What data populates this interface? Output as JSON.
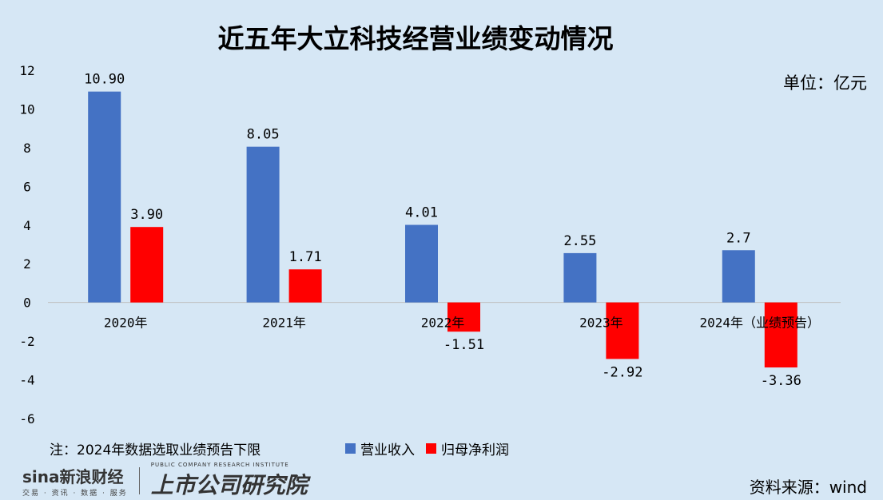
{
  "title": "近五年大立科技经营业绩变动情况",
  "unit_label": "单位：亿元",
  "note": "注：2024年数据选取业绩预告下限",
  "source": "资料来源：wind",
  "watermark": {
    "brand": "sina新浪财经",
    "sub": "交易 · 资讯 · 数据 · 服务",
    "lab": "上市公司研究院",
    "lab_sub": "PUBLIC COMPANY RESEARCH INSTITUTE"
  },
  "colors": {
    "revenue": "#4472c4",
    "profit": "#ff0000",
    "background": "#d6e7f5"
  },
  "chart_data": {
    "type": "bar",
    "categories": [
      "2020年",
      "2021年",
      "2022年",
      "2023年",
      "2024年（业绩预告）"
    ],
    "series": [
      {
        "name": "营业收入",
        "values": [
          10.9,
          8.05,
          4.01,
          2.55,
          2.7
        ],
        "labels": [
          "10.90",
          "8.05",
          "4.01",
          "2.55",
          "2.7"
        ]
      },
      {
        "name": "归母净利润",
        "values": [
          3.9,
          1.71,
          -1.51,
          -2.92,
          -3.36
        ],
        "labels": [
          "3.90",
          "1.71",
          "-1.51",
          "-2.92",
          "-3.36"
        ]
      }
    ],
    "ylim": [
      -6,
      12
    ],
    "yticks": [
      "12",
      "10",
      "8",
      "6",
      "4",
      "2",
      "0",
      "-2",
      "-4",
      "-6"
    ],
    "ytick_values": [
      12,
      10,
      8,
      6,
      4,
      2,
      0,
      -2,
      -4,
      -6
    ],
    "grid": false,
    "legend": "bottom"
  }
}
